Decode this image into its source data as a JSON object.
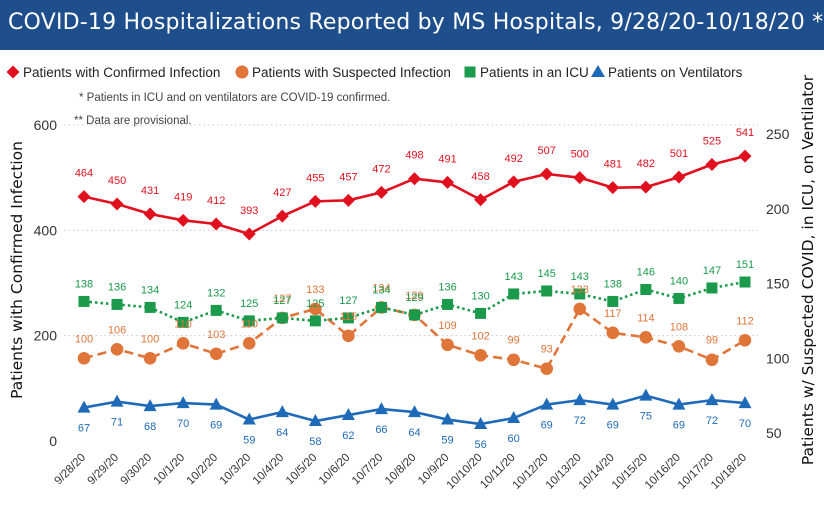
{
  "title": "COVID-19 Hospitalizations Reported by MS Hospitals, 9/28/20-10/18/20 *,**",
  "notes": [
    "* Patients in ICU and on ventilators are COVID-19 confirmed.",
    "** Data are provisional."
  ],
  "colors": {
    "title_bg": "#1e4e8c",
    "confirmed": "#e0101e",
    "suspected": "#e0753a",
    "icu": "#1a9a4a",
    "ventilators": "#1f6ab8"
  },
  "chart_data": {
    "type": "line",
    "categories": [
      "9/28/20",
      "9/29/20",
      "9/30/20",
      "10/1/20",
      "10/2/20",
      "10/3/20",
      "10/4/20",
      "10/5/20",
      "10/6/20",
      "10/7/20",
      "10/8/20",
      "10/9/20",
      "10/10/20",
      "10/11/20",
      "10/12/20",
      "10/13/20",
      "10/14/20",
      "10/15/20",
      "10/16/20",
      "10/17/20",
      "10/18/20"
    ],
    "ylabel_left": "Patients with Confirmed Infection",
    "ylabel_right": "Patients w/ Suspected COVID, in ICU, on Ventilator",
    "ylim_left": [
      0,
      600
    ],
    "yticks_left": [
      "0",
      "200",
      "400",
      "600"
    ],
    "ylim_right": [
      50,
      250
    ],
    "yticks_right": [
      "50",
      "100",
      "150",
      "200",
      "250"
    ],
    "grid": "horizontal dotted",
    "legend_position": "top",
    "series": [
      {
        "name": "Patients with Confirmed Infection",
        "axis": "left",
        "marker": "diamond",
        "line": "solid",
        "values": [
          464,
          450,
          431,
          419,
          412,
          393,
          427,
          455,
          457,
          472,
          498,
          491,
          458,
          492,
          507,
          500,
          481,
          482,
          501,
          525,
          541
        ]
      },
      {
        "name": "Patients with Suspected Infection",
        "axis": "right",
        "marker": "circle",
        "line": "dashed",
        "values": [
          100,
          106,
          100,
          110,
          103,
          110,
          127,
          133,
          115,
          134,
          129,
          109,
          102,
          99,
          93,
          133,
          117,
          114,
          108,
          99,
          112
        ]
      },
      {
        "name": "Patients in an ICU",
        "axis": "right",
        "marker": "square",
        "line": "dotted",
        "values": [
          138,
          136,
          134,
          124,
          132,
          125,
          127,
          125,
          127,
          134,
          129,
          136,
          130,
          143,
          145,
          143,
          138,
          146,
          140,
          147,
          151
        ]
      },
      {
        "name": "Patients on Ventilators",
        "axis": "right",
        "marker": "triangle",
        "line": "solid",
        "values": [
          67,
          71,
          68,
          70,
          69,
          59,
          64,
          58,
          62,
          66,
          64,
          59,
          56,
          60,
          69,
          72,
          69,
          75,
          69,
          72,
          70
        ]
      }
    ]
  }
}
